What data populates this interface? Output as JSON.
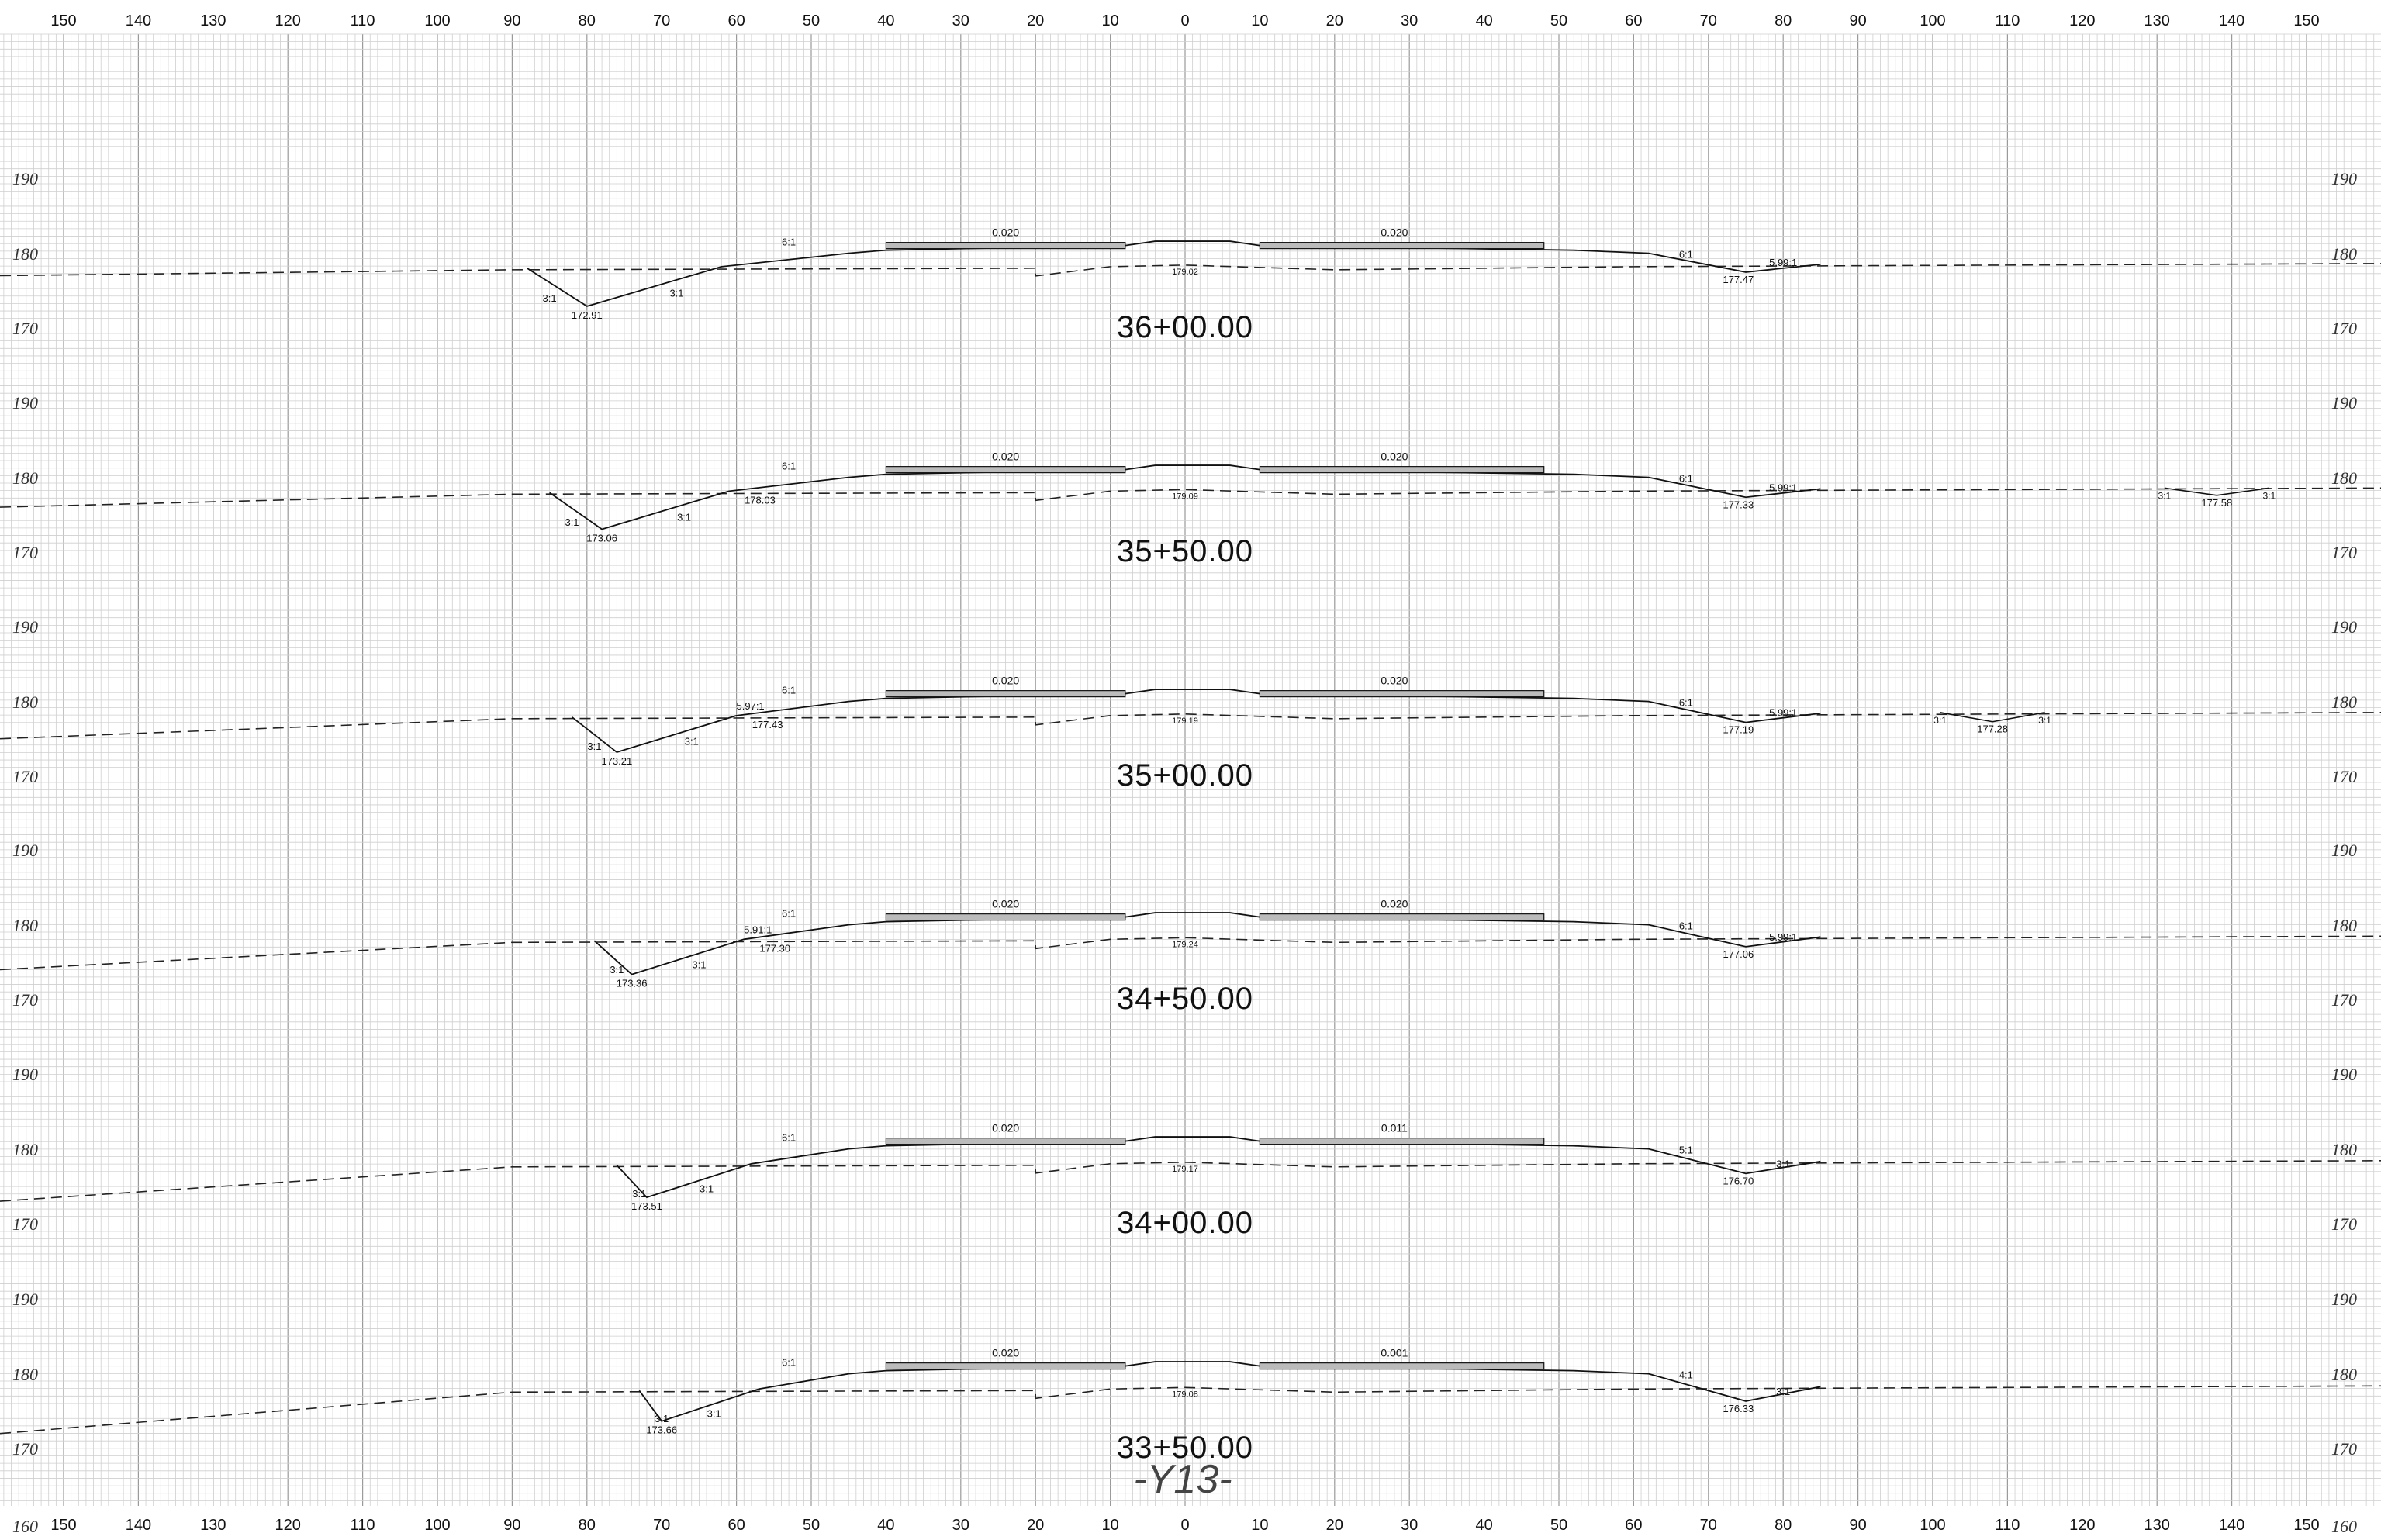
{
  "horizontal_scale": [
    "150",
    "140",
    "130",
    "120",
    "110",
    "100",
    "90",
    "80",
    "70",
    "60",
    "50",
    "40",
    "30",
    "20",
    "10",
    "0",
    "10",
    "20",
    "30",
    "40",
    "50",
    "60",
    "70",
    "80",
    "90",
    "100",
    "110",
    "120",
    "130",
    "140",
    "150"
  ],
  "sheet_label": "-Y13-",
  "sections": [
    {
      "station": "36+00.00",
      "elevations": [
        "190",
        "180",
        "170"
      ],
      "left_slopes": [
        "3:1",
        "3:1"
      ],
      "left_ditch_elev": "172.91",
      "fill_slope_left": "6:1",
      "cross_slope_left": "0.020",
      "cross_slope_right": "0.020",
      "centerline_elev": "179.02",
      "fill_slope_right": "6:1",
      "right_slope": "5.99:1",
      "right_ditch_elev": "177.47",
      "extra_ditch": null
    },
    {
      "station": "35+50.00",
      "elevations": [
        "190",
        "180",
        "170"
      ],
      "left_slopes": [
        "3:1",
        "3:1"
      ],
      "left_ditch_elev": "173.06",
      "left_hinge_elev": "178.03",
      "fill_slope_left": "6:1",
      "cross_slope_left": "0.020",
      "cross_slope_right": "0.020",
      "centerline_elev": "179.09",
      "fill_slope_right": "6:1",
      "right_slope": "5.99:1",
      "right_ditch_elev": "177.33",
      "extra_ditch": {
        "slopes": [
          "3:1",
          "3:1"
        ],
        "elev": "177.58"
      }
    },
    {
      "station": "35+00.00",
      "elevations": [
        "190",
        "180",
        "170"
      ],
      "left_slopes": [
        "3:1",
        "3:1"
      ],
      "left_ditch_elev": "173.21",
      "left_hinge_elev": "177.43",
      "left_extra_slope": "5.97:1",
      "fill_slope_left": "6:1",
      "cross_slope_left": "0.020",
      "cross_slope_right": "0.020",
      "centerline_elev": "179.19",
      "fill_slope_right": "6:1",
      "right_slope": "5.99:1",
      "right_ditch_elev": "177.19",
      "extra_ditch": {
        "slopes": [
          "3:1",
          "3:1"
        ],
        "elev": "177.28"
      }
    },
    {
      "station": "34+50.00",
      "elevations": [
        "190",
        "180",
        "170"
      ],
      "left_slopes": [
        "3:1",
        "3:1"
      ],
      "left_ditch_elev": "173.36",
      "left_hinge_elev": "177.30",
      "left_extra_slope": "5.91:1",
      "fill_slope_left": "6:1",
      "cross_slope_left": "0.020",
      "cross_slope_right": "0.020",
      "centerline_elev": "179.24",
      "fill_slope_right": "6:1",
      "right_slope": "5.99:1",
      "right_ditch_elev": "177.06",
      "extra_ditch": null
    },
    {
      "station": "34+00.00",
      "elevations": [
        "190",
        "180",
        "170"
      ],
      "left_slopes": [
        "3:1",
        "3:1"
      ],
      "left_ditch_elev": "173.51",
      "fill_slope_left": "6:1",
      "cross_slope_left": "0.020",
      "cross_slope_right": "0.011",
      "centerline_elev": "179.17",
      "fill_slope_right": "5:1",
      "right_slope": "3:1",
      "right_ditch_elev": "176.70",
      "extra_ditch": null
    },
    {
      "station": "33+50.00",
      "elevations": [
        "190",
        "180",
        "170"
      ],
      "left_slopes": [
        "3:1",
        "3:1"
      ],
      "left_ditch_elev": "173.66",
      "fill_slope_left": "6:1",
      "cross_slope_left": "0.020",
      "cross_slope_right": "0.001",
      "centerline_elev": "179.08",
      "fill_slope_right": "4:1",
      "right_slope": "3:1",
      "right_ditch_elev": "176.33",
      "extra_ditch": null
    }
  ],
  "bottom_elev": "160"
}
